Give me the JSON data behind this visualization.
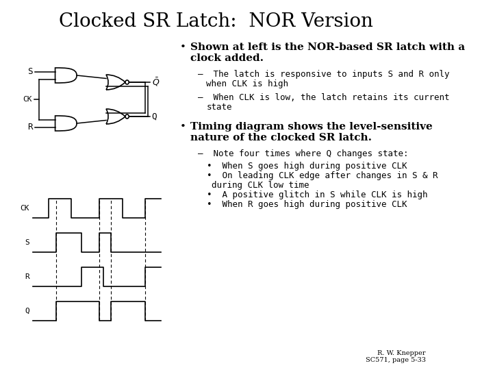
{
  "title": "Clocked SR Latch:  NOR Version",
  "title_fontsize": 20,
  "background_color": "#ffffff",
  "bullet1_bold": "Shown at left is the NOR-based SR latch with a\nclock added.",
  "bullet1_sub1": "The latch is responsive to inputs S and R only\nwhen CLK is high",
  "bullet1_sub2": "When CLK is low, the latch retains its current\nstate",
  "bullet2_bold": "Timing diagram shows the level-sensitive\nnature of the clocked SR latch.",
  "bullet2_sub1": "Note four times where Q changes state:",
  "bullet2_sub2a": "When S goes high during positive CLK",
  "bullet2_sub2b": "On leading CLK edge after changes in S & R\nduring CLK low time",
  "bullet2_sub2c": "A positive glitch in S while CLK is high",
  "bullet2_sub2d": "When R goes high during positive CLK",
  "footer": "R. W. Knepper\nSC571, page 5-33",
  "text_color": "#000000",
  "font_serif": "DejaVu Serif",
  "font_mono": "DejaVu Sans Mono",
  "fs_title": 20,
  "fs_bullet": 11,
  "fs_sub": 9,
  "fs_subsub": 9
}
